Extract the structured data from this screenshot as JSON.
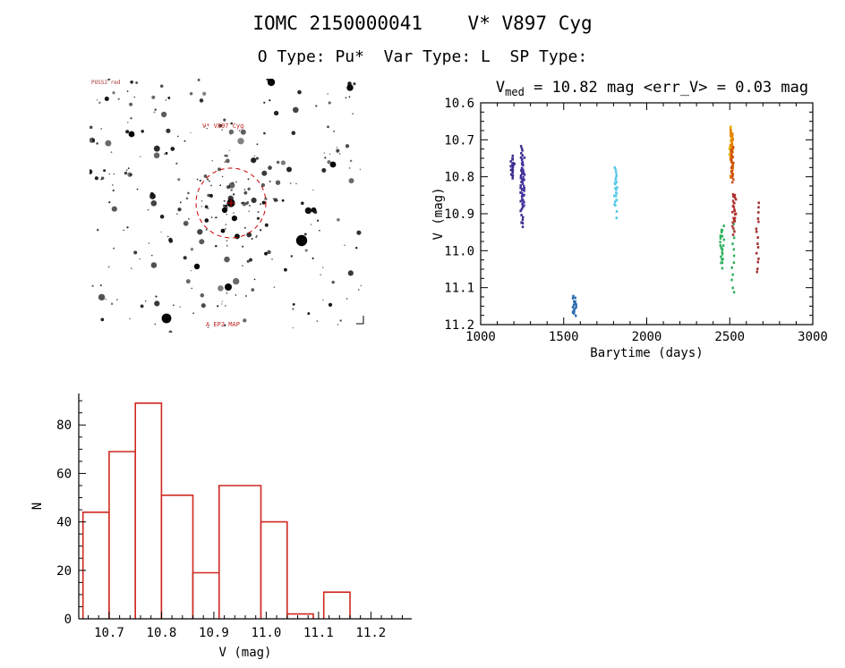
{
  "header": {
    "title": "IOMC 2150000041    V* V897 Cyg",
    "subtitle": "O Type: Pu*  Var Type: L  SP Type:"
  },
  "finder": {
    "corner_text": "POSS2 red",
    "target_label": "V* V897 Cyg",
    "bottom_text": "A EP2 MAP",
    "marker_color": "#cc0000"
  },
  "chart_data": [
    {
      "type": "scatter",
      "title_v": "V",
      "title_sub": "med",
      "title_rest": " = 10.82 mag <err_V> = 0.03 mag",
      "xlabel": "Barytime (days)",
      "ylabel": "V (mag)",
      "xlim": [
        1000,
        3000
      ],
      "ylim_top": 10.6,
      "ylim_bottom": 11.2,
      "xticks": [
        "1000",
        "1500",
        "2000",
        "2500",
        "3000"
      ],
      "yticks": [
        "10.6",
        "10.7",
        "10.8",
        "10.9",
        "11.0",
        "11.1",
        "11.2"
      ],
      "x_minor_step": 100,
      "y_minor_step": 0.025,
      "clusters": [
        {
          "x": 1188,
          "y0": 10.745,
          "y1": 10.805,
          "n": 12,
          "color": "#3d2b8e"
        },
        {
          "x": 1196,
          "y0": 10.76,
          "y1": 10.795,
          "n": 6,
          "color": "#3d2b8e"
        },
        {
          "x": 1248,
          "y0": 10.715,
          "y1": 10.935,
          "n": 34,
          "color": "#3d2b8e"
        },
        {
          "x": 1256,
          "y0": 10.75,
          "y1": 10.88,
          "n": 26,
          "color": "#4636a0"
        },
        {
          "x": 1562,
          "y0": 11.125,
          "y1": 11.17,
          "n": 9,
          "color": "#2c6cb0"
        },
        {
          "x": 1569,
          "y0": 11.13,
          "y1": 11.175,
          "n": 9,
          "color": "#2c6cb0"
        },
        {
          "x": 1812,
          "y0": 10.775,
          "y1": 10.875,
          "n": 16,
          "color": "#55c8e8"
        },
        {
          "x": 1817,
          "y0": 10.8,
          "y1": 10.91,
          "n": 8,
          "color": "#55c8e8"
        },
        {
          "x": 2450,
          "y0": 10.945,
          "y1": 11.03,
          "n": 12,
          "color": "#2eb05c"
        },
        {
          "x": 2459,
          "y0": 10.935,
          "y1": 11.045,
          "n": 10,
          "color": "#2eb05c"
        },
        {
          "x": 2520,
          "y0": 10.93,
          "y1": 11.115,
          "n": 12,
          "color": "#2eb05c"
        },
        {
          "x": 2506,
          "y0": 10.665,
          "y1": 10.745,
          "n": 18,
          "color": "#e2b007"
        },
        {
          "x": 2512,
          "y0": 10.675,
          "y1": 10.8,
          "n": 30,
          "color": "#e57f00"
        },
        {
          "x": 2517,
          "y0": 10.72,
          "y1": 10.815,
          "n": 18,
          "color": "#cc4b10"
        },
        {
          "x": 2524,
          "y0": 10.845,
          "y1": 10.955,
          "n": 16,
          "color": "#b03030"
        },
        {
          "x": 2530,
          "y0": 10.85,
          "y1": 10.92,
          "n": 8,
          "color": "#b03030"
        },
        {
          "x": 2668,
          "y0": 10.87,
          "y1": 11.06,
          "n": 15,
          "color": "#9e2b2b"
        }
      ]
    },
    {
      "type": "bar",
      "xlabel": "V (mag)",
      "ylabel": "N",
      "xlim": [
        10.642,
        11.278
      ],
      "ylim": [
        0,
        93
      ],
      "xticks": [
        "10.7",
        "10.8",
        "10.9",
        "11.0",
        "11.1",
        "11.2"
      ],
      "yticks": [
        "0",
        "20",
        "40",
        "60",
        "80"
      ],
      "x_minor_step": 0.02,
      "x_minor_start": 10.66,
      "y_minor_step": 5,
      "bar_color": "#cf2920",
      "bars": [
        {
          "x0": 10.65,
          "x1": 10.7,
          "n": 44
        },
        {
          "x0": 10.7,
          "x1": 10.75,
          "n": 69
        },
        {
          "x0": 10.75,
          "x1": 10.8,
          "n": 89
        },
        {
          "x0": 10.8,
          "x1": 10.86,
          "n": 51
        },
        {
          "x0": 10.86,
          "x1": 10.91,
          "n": 19
        },
        {
          "x0": 10.91,
          "x1": 10.99,
          "n": 55
        },
        {
          "x0": 10.99,
          "x1": 11.04,
          "n": 40
        },
        {
          "x0": 11.04,
          "x1": 11.09,
          "n": 2
        },
        {
          "x0": 11.11,
          "x1": 11.16,
          "n": 11
        }
      ]
    }
  ]
}
